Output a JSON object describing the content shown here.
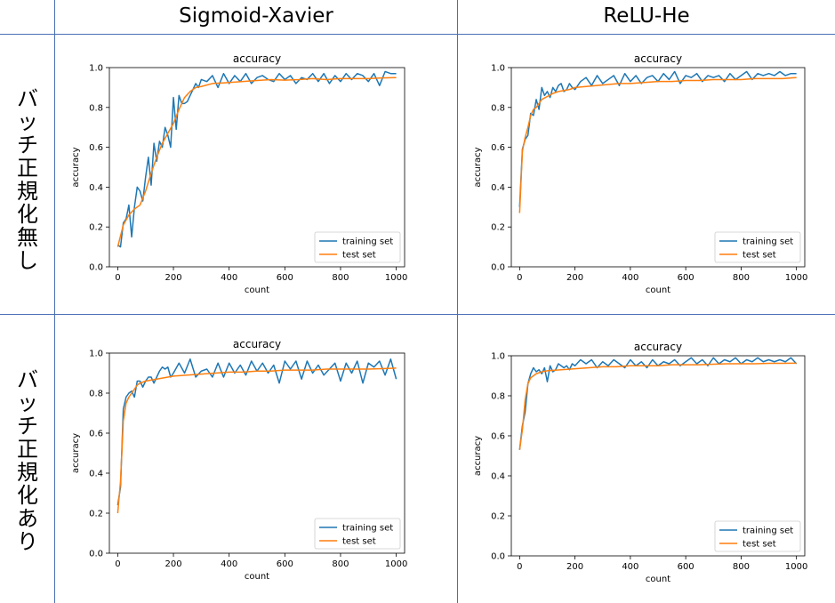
{
  "columns": [
    "Sigmoid-Xavier",
    "ReLU-He"
  ],
  "rows": [
    "バッチ正規化無し",
    "バッチ正規化あり"
  ],
  "colors": {
    "training": "#1f77b4",
    "test": "#ff7f0e",
    "grid": "#4a6fb5"
  },
  "chart_data": [
    {
      "type": "line",
      "title": "accuracy",
      "xlabel": "count",
      "ylabel": "accuracy",
      "xlim": [
        -30,
        1030
      ],
      "ylim": [
        0,
        1.0
      ],
      "xticks": [
        0,
        200,
        400,
        600,
        800,
        1000
      ],
      "yticks": [
        0.0,
        0.2,
        0.4,
        0.6,
        0.8,
        1.0
      ],
      "legend": "bottom-right",
      "series": [
        {
          "name": "training set",
          "color": "#1f77b4",
          "x": [
            0,
            10,
            20,
            30,
            40,
            50,
            60,
            70,
            80,
            90,
            100,
            110,
            120,
            130,
            140,
            150,
            160,
            170,
            180,
            190,
            200,
            210,
            220,
            230,
            240,
            250,
            260,
            270,
            280,
            290,
            300,
            320,
            340,
            360,
            380,
            400,
            420,
            440,
            460,
            480,
            500,
            520,
            540,
            560,
            580,
            600,
            620,
            640,
            660,
            680,
            700,
            720,
            740,
            760,
            780,
            800,
            820,
            840,
            860,
            880,
            900,
            920,
            940,
            960,
            980,
            1000
          ],
          "y": [
            0.11,
            0.1,
            0.22,
            0.24,
            0.31,
            0.15,
            0.3,
            0.4,
            0.38,
            0.33,
            0.45,
            0.55,
            0.41,
            0.62,
            0.53,
            0.63,
            0.6,
            0.7,
            0.66,
            0.6,
            0.85,
            0.69,
            0.86,
            0.82,
            0.82,
            0.83,
            0.86,
            0.89,
            0.92,
            0.9,
            0.94,
            0.93,
            0.96,
            0.9,
            0.97,
            0.92,
            0.96,
            0.93,
            0.97,
            0.92,
            0.95,
            0.96,
            0.94,
            0.93,
            0.97,
            0.94,
            0.96,
            0.92,
            0.95,
            0.94,
            0.97,
            0.93,
            0.97,
            0.92,
            0.96,
            0.93,
            0.97,
            0.94,
            0.97,
            0.96,
            0.93,
            0.97,
            0.91,
            0.98,
            0.97,
            0.97
          ]
        },
        {
          "name": "test set",
          "color": "#ff7f0e",
          "x": [
            0,
            20,
            40,
            60,
            80,
            100,
            120,
            140,
            160,
            180,
            200,
            220,
            240,
            260,
            280,
            300,
            340,
            400,
            450,
            500,
            550,
            600,
            650,
            700,
            750,
            800,
            850,
            900,
            950,
            1000
          ],
          "y": [
            0.1,
            0.21,
            0.26,
            0.29,
            0.31,
            0.38,
            0.47,
            0.55,
            0.62,
            0.67,
            0.72,
            0.79,
            0.85,
            0.88,
            0.9,
            0.905,
            0.92,
            0.925,
            0.93,
            0.935,
            0.94,
            0.937,
            0.94,
            0.945,
            0.94,
            0.945,
            0.945,
            0.945,
            0.948,
            0.95
          ]
        }
      ]
    },
    {
      "type": "line",
      "title": "accuracy",
      "xlabel": "count",
      "ylabel": "accuracy",
      "xlim": [
        -30,
        1030
      ],
      "ylim": [
        0,
        1.0
      ],
      "xticks": [
        0,
        200,
        400,
        600,
        800,
        1000
      ],
      "yticks": [
        0.0,
        0.2,
        0.4,
        0.6,
        0.8,
        1.0
      ],
      "legend": "bottom-right",
      "series": [
        {
          "name": "training set",
          "color": "#1f77b4",
          "x": [
            0,
            10,
            20,
            30,
            40,
            50,
            60,
            70,
            80,
            90,
            100,
            110,
            120,
            130,
            140,
            150,
            160,
            170,
            180,
            190,
            200,
            220,
            240,
            260,
            280,
            300,
            320,
            340,
            360,
            380,
            400,
            420,
            440,
            460,
            480,
            500,
            520,
            540,
            560,
            580,
            600,
            620,
            640,
            660,
            680,
            700,
            720,
            740,
            760,
            780,
            800,
            820,
            840,
            860,
            880,
            900,
            920,
            940,
            960,
            980,
            1000
          ],
          "y": [
            0.3,
            0.59,
            0.64,
            0.66,
            0.77,
            0.76,
            0.84,
            0.79,
            0.9,
            0.86,
            0.88,
            0.85,
            0.9,
            0.88,
            0.91,
            0.92,
            0.88,
            0.89,
            0.92,
            0.9,
            0.89,
            0.93,
            0.95,
            0.91,
            0.96,
            0.92,
            0.94,
            0.96,
            0.91,
            0.97,
            0.93,
            0.96,
            0.92,
            0.95,
            0.96,
            0.93,
            0.97,
            0.94,
            0.98,
            0.92,
            0.96,
            0.95,
            0.97,
            0.93,
            0.96,
            0.95,
            0.96,
            0.93,
            0.97,
            0.94,
            0.96,
            0.98,
            0.94,
            0.97,
            0.96,
            0.97,
            0.96,
            0.98,
            0.96,
            0.97,
            0.97
          ]
        },
        {
          "name": "test set",
          "color": "#ff7f0e",
          "x": [
            0,
            10,
            20,
            30,
            40,
            50,
            60,
            70,
            80,
            100,
            120,
            140,
            160,
            180,
            200,
            240,
            280,
            320,
            360,
            400,
            450,
            500,
            550,
            600,
            650,
            700,
            750,
            800,
            850,
            900,
            950,
            1000
          ],
          "y": [
            0.27,
            0.58,
            0.65,
            0.7,
            0.76,
            0.79,
            0.8,
            0.82,
            0.84,
            0.855,
            0.87,
            0.88,
            0.885,
            0.89,
            0.9,
            0.905,
            0.91,
            0.915,
            0.92,
            0.92,
            0.925,
            0.93,
            0.93,
            0.935,
            0.935,
            0.94,
            0.94,
            0.94,
            0.945,
            0.945,
            0.945,
            0.95
          ]
        }
      ]
    },
    {
      "type": "line",
      "title": "accuracy",
      "xlabel": "count",
      "ylabel": "accuracy",
      "xlim": [
        -30,
        1030
      ],
      "ylim": [
        0,
        1.0
      ],
      "xticks": [
        0,
        200,
        400,
        600,
        800,
        1000
      ],
      "yticks": [
        0.0,
        0.2,
        0.4,
        0.6,
        0.8,
        1.0
      ],
      "legend": "bottom-right",
      "series": [
        {
          "name": "training set",
          "color": "#1f77b4",
          "x": [
            0,
            10,
            20,
            30,
            40,
            50,
            60,
            70,
            80,
            90,
            100,
            110,
            120,
            130,
            140,
            150,
            160,
            170,
            180,
            190,
            200,
            220,
            240,
            260,
            280,
            300,
            320,
            340,
            360,
            380,
            400,
            420,
            440,
            460,
            480,
            500,
            520,
            540,
            560,
            580,
            600,
            620,
            640,
            660,
            680,
            700,
            720,
            740,
            760,
            780,
            800,
            820,
            840,
            860,
            880,
            900,
            920,
            940,
            960,
            980,
            1000
          ],
          "y": [
            0.24,
            0.33,
            0.72,
            0.78,
            0.8,
            0.81,
            0.78,
            0.86,
            0.86,
            0.83,
            0.86,
            0.88,
            0.88,
            0.85,
            0.88,
            0.91,
            0.93,
            0.92,
            0.93,
            0.88,
            0.9,
            0.95,
            0.9,
            0.97,
            0.88,
            0.91,
            0.92,
            0.88,
            0.95,
            0.88,
            0.95,
            0.9,
            0.94,
            0.89,
            0.96,
            0.91,
            0.95,
            0.9,
            0.94,
            0.85,
            0.96,
            0.92,
            0.96,
            0.87,
            0.96,
            0.9,
            0.94,
            0.89,
            0.92,
            0.95,
            0.86,
            0.95,
            0.9,
            0.96,
            0.85,
            0.95,
            0.93,
            0.96,
            0.89,
            0.97,
            0.87
          ]
        },
        {
          "name": "test set",
          "color": "#ff7f0e",
          "x": [
            0,
            10,
            20,
            30,
            40,
            50,
            60,
            70,
            80,
            100,
            120,
            140,
            160,
            180,
            200,
            250,
            300,
            350,
            400,
            450,
            500,
            550,
            600,
            650,
            700,
            750,
            800,
            850,
            900,
            950,
            1000
          ],
          "y": [
            0.2,
            0.36,
            0.66,
            0.75,
            0.78,
            0.8,
            0.82,
            0.84,
            0.85,
            0.86,
            0.865,
            0.87,
            0.875,
            0.88,
            0.885,
            0.89,
            0.895,
            0.9,
            0.905,
            0.905,
            0.91,
            0.91,
            0.915,
            0.915,
            0.915,
            0.92,
            0.92,
            0.92,
            0.92,
            0.922,
            0.925
          ]
        }
      ]
    },
    {
      "type": "line",
      "title": "accuracy",
      "xlabel": "count",
      "ylabel": "accuracy",
      "xlim": [
        -30,
        1030
      ],
      "ylim": [
        0,
        1.0
      ],
      "xticks": [
        0,
        200,
        400,
        600,
        800,
        1000
      ],
      "yticks": [
        0.0,
        0.2,
        0.4,
        0.6,
        0.8,
        1.0
      ],
      "legend": "bottom-right",
      "series": [
        {
          "name": "training set",
          "color": "#1f77b4",
          "x": [
            0,
            10,
            20,
            30,
            40,
            50,
            60,
            70,
            80,
            90,
            100,
            110,
            120,
            130,
            140,
            150,
            160,
            170,
            180,
            190,
            200,
            220,
            240,
            260,
            280,
            300,
            320,
            340,
            360,
            380,
            400,
            420,
            440,
            460,
            480,
            500,
            520,
            540,
            560,
            580,
            600,
            620,
            640,
            660,
            680,
            700,
            720,
            740,
            760,
            780,
            800,
            820,
            840,
            860,
            880,
            900,
            920,
            940,
            960,
            980,
            1000
          ],
          "y": [
            0.53,
            0.65,
            0.72,
            0.86,
            0.91,
            0.94,
            0.92,
            0.93,
            0.91,
            0.94,
            0.87,
            0.95,
            0.92,
            0.93,
            0.96,
            0.95,
            0.94,
            0.95,
            0.93,
            0.96,
            0.95,
            0.98,
            0.96,
            0.98,
            0.94,
            0.97,
            0.95,
            0.98,
            0.96,
            0.94,
            0.98,
            0.95,
            0.97,
            0.94,
            0.98,
            0.95,
            0.97,
            0.96,
            0.98,
            0.95,
            0.97,
            0.99,
            0.96,
            0.98,
            0.95,
            0.99,
            0.96,
            0.98,
            0.97,
            0.99,
            0.96,
            0.98,
            0.97,
            0.99,
            0.97,
            0.98,
            0.97,
            0.98,
            0.97,
            0.99,
            0.96
          ]
        },
        {
          "name": "test set",
          "color": "#ff7f0e",
          "x": [
            0,
            10,
            20,
            30,
            40,
            50,
            60,
            80,
            100,
            150,
            200,
            250,
            300,
            350,
            400,
            450,
            500,
            550,
            600,
            650,
            700,
            750,
            800,
            850,
            900,
            950,
            1000
          ],
          "y": [
            0.53,
            0.63,
            0.78,
            0.86,
            0.89,
            0.9,
            0.91,
            0.92,
            0.925,
            0.93,
            0.935,
            0.94,
            0.945,
            0.945,
            0.95,
            0.95,
            0.95,
            0.955,
            0.955,
            0.955,
            0.958,
            0.96,
            0.96,
            0.96,
            0.962,
            0.962,
            0.963
          ]
        }
      ]
    }
  ]
}
